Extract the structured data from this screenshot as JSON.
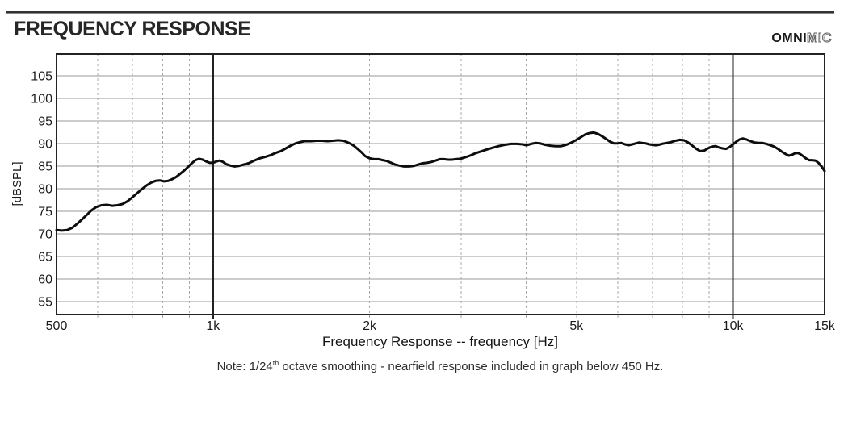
{
  "header": {
    "title": "FREQUENCY RESPONSE",
    "logo_solid": "OMNI",
    "logo_outline": "MIC"
  },
  "note": {
    "prefix": "Note: 1/24",
    "sup": "th",
    "suffix": " octave smoothing - nearfield response included in graph below 450 Hz."
  },
  "chart_data": {
    "type": "line",
    "xlabel": "Frequency Response -- frequency [Hz]",
    "ylabel": "[dBSPL]",
    "x_scale": "log",
    "xlim": [
      500,
      15000
    ],
    "ylim_view": [
      52.1,
      109.8
    ],
    "y_grid_values": [
      105,
      100,
      95,
      90,
      85,
      80,
      75,
      70,
      65,
      60,
      55
    ],
    "y_tick_labels": [
      "105",
      "100",
      "95",
      "90",
      "85",
      "80",
      "75",
      "70",
      "65",
      "60",
      "55"
    ],
    "x_ticks": [
      {
        "value": 500,
        "label": "500"
      },
      {
        "value": 1000,
        "label": "1k"
      },
      {
        "value": 2000,
        "label": "2k"
      },
      {
        "value": 5000,
        "label": "5k"
      },
      {
        "value": 10000,
        "label": "10k"
      },
      {
        "value": 15000,
        "label": "15k"
      }
    ],
    "x_solid_lines": [
      1000,
      10000
    ],
    "x_dashed_lines": [
      600,
      700,
      800,
      900,
      2000,
      3000,
      4000,
      5000,
      6000,
      7000,
      8000,
      9000
    ],
    "grid_on": true,
    "legend": "none",
    "colors": {
      "curve": "#0d0d0d",
      "h_grid": "#999999",
      "v_dash": "#a8a8a8",
      "axis_solid": "#222222",
      "tick_text": "#1a1a1a"
    },
    "series": [
      {
        "name": "frequency-response",
        "points": [
          [
            500,
            70.8
          ],
          [
            512,
            70.7
          ],
          [
            524,
            70.8
          ],
          [
            536,
            71.3
          ],
          [
            548,
            72.2
          ],
          [
            560,
            73.2
          ],
          [
            572,
            74.2
          ],
          [
            584,
            75.2
          ],
          [
            596,
            75.9
          ],
          [
            610,
            76.3
          ],
          [
            625,
            76.4
          ],
          [
            640,
            76.2
          ],
          [
            655,
            76.3
          ],
          [
            670,
            76.6
          ],
          [
            685,
            77.2
          ],
          [
            700,
            78.1
          ],
          [
            715,
            79.0
          ],
          [
            730,
            79.9
          ],
          [
            745,
            80.7
          ],
          [
            760,
            81.3
          ],
          [
            775,
            81.7
          ],
          [
            790,
            81.8
          ],
          [
            805,
            81.6
          ],
          [
            820,
            81.7
          ],
          [
            835,
            82.1
          ],
          [
            850,
            82.6
          ],
          [
            865,
            83.3
          ],
          [
            880,
            84.0
          ],
          [
            895,
            84.8
          ],
          [
            910,
            85.6
          ],
          [
            925,
            86.3
          ],
          [
            940,
            86.6
          ],
          [
            955,
            86.4
          ],
          [
            970,
            86.0
          ],
          [
            985,
            85.7
          ],
          [
            1000,
            85.7
          ],
          [
            1015,
            86.0
          ],
          [
            1030,
            86.2
          ],
          [
            1045,
            85.9
          ],
          [
            1060,
            85.4
          ],
          [
            1080,
            85.1
          ],
          [
            1100,
            84.9
          ],
          [
            1120,
            85.0
          ],
          [
            1145,
            85.3
          ],
          [
            1170,
            85.6
          ],
          [
            1200,
            86.2
          ],
          [
            1230,
            86.7
          ],
          [
            1260,
            87.0
          ],
          [
            1290,
            87.4
          ],
          [
            1320,
            87.9
          ],
          [
            1350,
            88.3
          ],
          [
            1380,
            88.9
          ],
          [
            1410,
            89.5
          ],
          [
            1440,
            90.0
          ],
          [
            1470,
            90.3
          ],
          [
            1500,
            90.5
          ],
          [
            1540,
            90.5
          ],
          [
            1580,
            90.6
          ],
          [
            1620,
            90.6
          ],
          [
            1660,
            90.5
          ],
          [
            1700,
            90.6
          ],
          [
            1740,
            90.7
          ],
          [
            1780,
            90.6
          ],
          [
            1810,
            90.3
          ],
          [
            1840,
            89.9
          ],
          [
            1870,
            89.4
          ],
          [
            1900,
            88.7
          ],
          [
            1930,
            88.0
          ],
          [
            1960,
            87.2
          ],
          [
            2000,
            86.7
          ],
          [
            2040,
            86.5
          ],
          [
            2080,
            86.5
          ],
          [
            2120,
            86.3
          ],
          [
            2160,
            86.1
          ],
          [
            2200,
            85.7
          ],
          [
            2240,
            85.3
          ],
          [
            2280,
            85.1
          ],
          [
            2330,
            84.9
          ],
          [
            2380,
            84.9
          ],
          [
            2430,
            85.0
          ],
          [
            2480,
            85.3
          ],
          [
            2530,
            85.6
          ],
          [
            2580,
            85.7
          ],
          [
            2630,
            85.9
          ],
          [
            2680,
            86.2
          ],
          [
            2730,
            86.5
          ],
          [
            2780,
            86.5
          ],
          [
            2830,
            86.4
          ],
          [
            2880,
            86.4
          ],
          [
            2930,
            86.5
          ],
          [
            2990,
            86.6
          ],
          [
            3050,
            86.9
          ],
          [
            3120,
            87.3
          ],
          [
            3190,
            87.8
          ],
          [
            3270,
            88.2
          ],
          [
            3350,
            88.6
          ],
          [
            3440,
            89.0
          ],
          [
            3540,
            89.4
          ],
          [
            3640,
            89.7
          ],
          [
            3740,
            89.9
          ],
          [
            3840,
            89.9
          ],
          [
            3940,
            89.8
          ],
          [
            4010,
            89.6
          ],
          [
            4090,
            89.9
          ],
          [
            4170,
            90.1
          ],
          [
            4260,
            90.0
          ],
          [
            4350,
            89.7
          ],
          [
            4450,
            89.5
          ],
          [
            4560,
            89.4
          ],
          [
            4670,
            89.4
          ],
          [
            4780,
            89.7
          ],
          [
            4890,
            90.2
          ],
          [
            5000,
            90.8
          ],
          [
            5100,
            91.4
          ],
          [
            5200,
            92.0
          ],
          [
            5300,
            92.3
          ],
          [
            5400,
            92.4
          ],
          [
            5500,
            92.1
          ],
          [
            5600,
            91.6
          ],
          [
            5700,
            91.0
          ],
          [
            5800,
            90.4
          ],
          [
            5900,
            90.0
          ],
          [
            6000,
            90.0
          ],
          [
            6100,
            90.1
          ],
          [
            6200,
            89.8
          ],
          [
            6300,
            89.6
          ],
          [
            6400,
            89.8
          ],
          [
            6500,
            90.0
          ],
          [
            6600,
            90.2
          ],
          [
            6700,
            90.1
          ],
          [
            6800,
            90.0
          ],
          [
            6900,
            89.8
          ],
          [
            7000,
            89.7
          ],
          [
            7100,
            89.6
          ],
          [
            7200,
            89.7
          ],
          [
            7300,
            89.9
          ],
          [
            7450,
            90.1
          ],
          [
            7600,
            90.3
          ],
          [
            7750,
            90.6
          ],
          [
            7900,
            90.8
          ],
          [
            8050,
            90.7
          ],
          [
            8200,
            90.2
          ],
          [
            8350,
            89.5
          ],
          [
            8500,
            88.8
          ],
          [
            8650,
            88.3
          ],
          [
            8800,
            88.4
          ],
          [
            8950,
            88.9
          ],
          [
            9100,
            89.3
          ],
          [
            9250,
            89.4
          ],
          [
            9400,
            89.1
          ],
          [
            9550,
            88.9
          ],
          [
            9700,
            88.8
          ],
          [
            9850,
            89.2
          ],
          [
            10000,
            89.8
          ],
          [
            10150,
            90.4
          ],
          [
            10300,
            90.9
          ],
          [
            10450,
            91.1
          ],
          [
            10600,
            90.9
          ],
          [
            10800,
            90.5
          ],
          [
            11000,
            90.2
          ],
          [
            11200,
            90.1
          ],
          [
            11400,
            90.1
          ],
          [
            11600,
            89.9
          ],
          [
            11800,
            89.6
          ],
          [
            12000,
            89.3
          ],
          [
            12200,
            88.8
          ],
          [
            12400,
            88.2
          ],
          [
            12600,
            87.7
          ],
          [
            12800,
            87.3
          ],
          [
            13000,
            87.5
          ],
          [
            13200,
            87.9
          ],
          [
            13400,
            87.8
          ],
          [
            13600,
            87.3
          ],
          [
            13800,
            86.7
          ],
          [
            14000,
            86.3
          ],
          [
            14200,
            86.3
          ],
          [
            14400,
            86.2
          ],
          [
            14600,
            85.7
          ],
          [
            14800,
            84.9
          ],
          [
            15000,
            83.9
          ]
        ]
      }
    ]
  }
}
